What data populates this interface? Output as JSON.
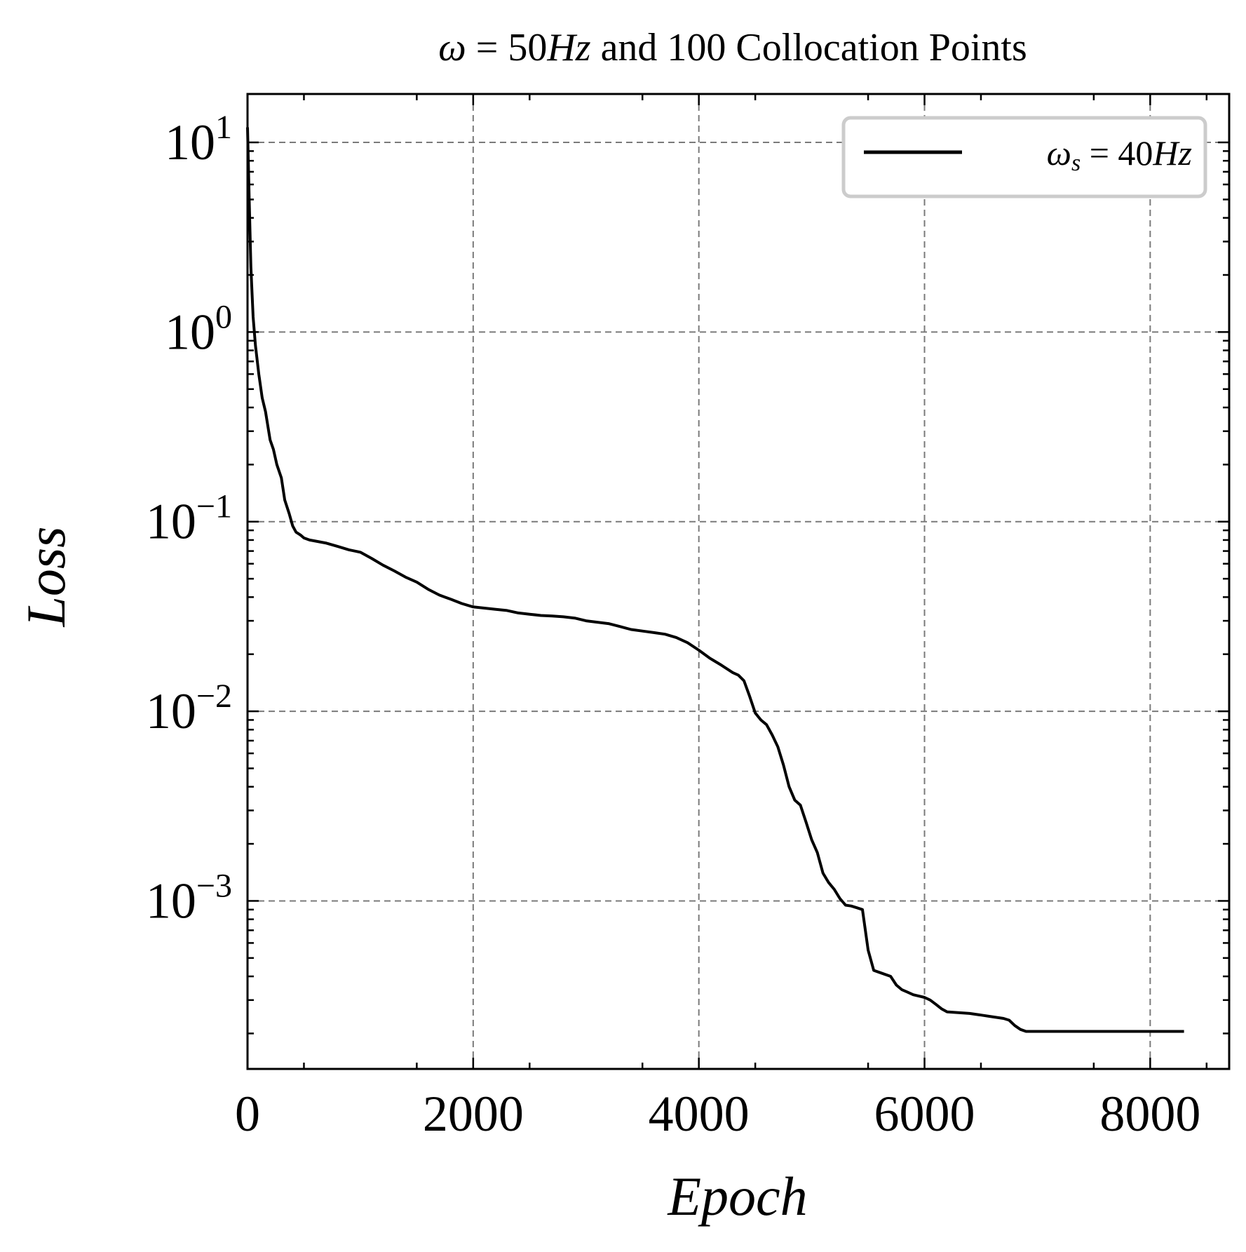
{
  "chart_data": {
    "type": "line",
    "title": {
      "omega": "ω",
      "eq": " = ",
      "value": "50",
      "unit": "Hz",
      "rest": " and 100 Collocation Points"
    },
    "xlabel": "Epoch",
    "ylabel": "Loss",
    "xlim": [
      0,
      8700
    ],
    "ylim": [
      0.00013,
      18
    ],
    "yscale": "log",
    "grid": true,
    "legend_position": "top-right",
    "x_ticks": [
      {
        "value": 0,
        "label": "0"
      },
      {
        "value": 2000,
        "label": "2000"
      },
      {
        "value": 4000,
        "label": "4000"
      },
      {
        "value": 6000,
        "label": "6000"
      },
      {
        "value": 8000,
        "label": "8000"
      }
    ],
    "y_ticks": [
      {
        "value": 10,
        "base": "10",
        "exp": "1"
      },
      {
        "value": 1,
        "base": "10",
        "exp": "0"
      },
      {
        "value": 0.1,
        "base": "10",
        "exp": "−1"
      },
      {
        "value": 0.01,
        "base": "10",
        "exp": "−2"
      },
      {
        "value": 0.001,
        "base": "10",
        "exp": "−3"
      }
    ],
    "series": [
      {
        "legend": {
          "symbol": "ω",
          "sub": "s",
          "eq": " = ",
          "value": "40",
          "unit": "Hz"
        },
        "color": "#000000",
        "x": [
          0,
          15,
          30,
          50,
          70,
          100,
          130,
          160,
          200,
          230,
          260,
          300,
          330,
          370,
          400,
          430,
          470,
          500,
          550,
          600,
          700,
          800,
          900,
          1000,
          1100,
          1200,
          1300,
          1400,
          1500,
          1600,
          1700,
          1800,
          1900,
          2000,
          2100,
          2200,
          2300,
          2400,
          2500,
          2600,
          2700,
          2800,
          2900,
          3000,
          3100,
          3200,
          3300,
          3400,
          3500,
          3600,
          3700,
          3800,
          3900,
          4000,
          4100,
          4200,
          4300,
          4350,
          4400,
          4450,
          4500,
          4550,
          4600,
          4650,
          4700,
          4750,
          4800,
          4850,
          4900,
          4950,
          5000,
          5050,
          5100,
          5150,
          5200,
          5250,
          5300,
          5350,
          5400,
          5450,
          5500,
          5550,
          5600,
          5700,
          5750,
          5800,
          5850,
          5900,
          6000,
          6050,
          6100,
          6150,
          6200,
          6400,
          6500,
          6600,
          6700,
          6750,
          6800,
          6850,
          6900,
          7000,
          7500,
          8000,
          8300
        ],
        "y": [
          12,
          5,
          2.2,
          1.2,
          0.85,
          0.6,
          0.45,
          0.38,
          0.27,
          0.24,
          0.2,
          0.17,
          0.13,
          0.11,
          0.095,
          0.088,
          0.085,
          0.082,
          0.08,
          0.079,
          0.077,
          0.074,
          0.071,
          0.069,
          0.064,
          0.059,
          0.055,
          0.051,
          0.048,
          0.044,
          0.041,
          0.039,
          0.037,
          0.0355,
          0.035,
          0.0345,
          0.034,
          0.033,
          0.0325,
          0.032,
          0.0318,
          0.0315,
          0.031,
          0.03,
          0.0295,
          0.029,
          0.028,
          0.027,
          0.0265,
          0.026,
          0.0255,
          0.0245,
          0.023,
          0.021,
          0.019,
          0.0175,
          0.016,
          0.0155,
          0.0145,
          0.012,
          0.0098,
          0.009,
          0.0085,
          0.0075,
          0.0065,
          0.0052,
          0.004,
          0.0034,
          0.0032,
          0.0026,
          0.0021,
          0.0018,
          0.0014,
          0.00125,
          0.00115,
          0.00103,
          0.00095,
          0.00094,
          0.00092,
          0.0009,
          0.00055,
          0.00043,
          0.00042,
          0.0004,
          0.00036,
          0.00034,
          0.00033,
          0.00032,
          0.00031,
          0.0003,
          0.000285,
          0.00027,
          0.00026,
          0.000255,
          0.00025,
          0.000245,
          0.00024,
          0.000235,
          0.00022,
          0.00021,
          0.000205,
          0.000205,
          0.000205,
          0.000205,
          0.000205
        ]
      }
    ]
  }
}
